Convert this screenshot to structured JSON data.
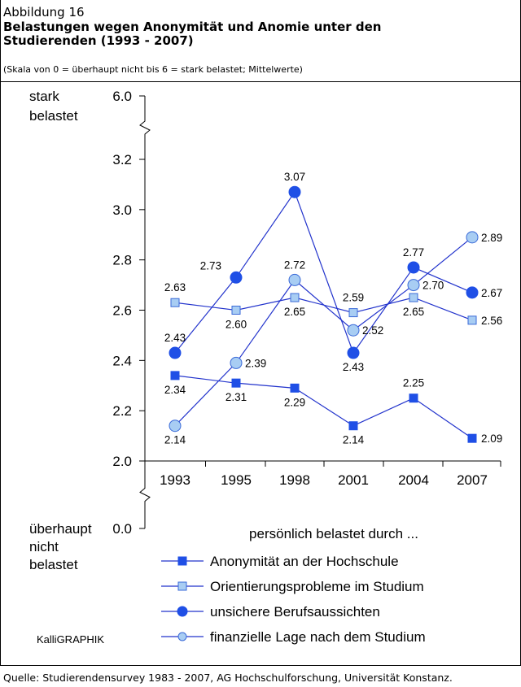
{
  "chart_data": {
    "type": "line",
    "figure_label": "Abbildung 16",
    "title_lines": [
      "Belastungen wegen Anonymität und Anomie unter den",
      "Studierenden (1993 - 2007)"
    ],
    "subtitle": "(Skala von 0 = überhaupt nicht bis 6 = stark belastet; Mittelwerte)",
    "y_top_label": [
      "stark",
      "belastet"
    ],
    "y_bottom_label": [
      "überhaupt",
      "nicht",
      "belastet"
    ],
    "categories": [
      "1993",
      "1995",
      "1998",
      "2001",
      "2004",
      "2007"
    ],
    "ylim": [
      0,
      6
    ],
    "y_breaks": [
      [
        0,
        2
      ],
      [
        3.2,
        6
      ]
    ],
    "yticks": [
      {
        "value": 0,
        "label": "0.0"
      },
      {
        "value": 2,
        "label": "2.0"
      },
      2.2,
      2.4,
      2.6,
      2.8,
      {
        "value": 3,
        "label": "3.0"
      },
      3.2,
      {
        "value": 6,
        "label": "6.0"
      }
    ],
    "grid": false,
    "legend_title": "persönlich belastet durch ...",
    "series": [
      {
        "name": "Anonymität an der Hochschule",
        "color": "#1f4fe6",
        "line_color": "#2233cc",
        "marker": "square",
        "values": [
          2.34,
          2.31,
          2.29,
          2.14,
          2.25,
          2.09
        ],
        "value_labels": [
          "2.34",
          "2.31",
          "2.29",
          "2.14",
          "2.25",
          "2.09"
        ]
      },
      {
        "name": "Orientierungsprobleme im Studium",
        "color": "#a8cdf3",
        "line_color": "#2233cc",
        "marker": "square",
        "values": [
          2.63,
          2.6,
          2.65,
          2.59,
          2.65,
          2.56
        ],
        "value_labels": [
          "2.63",
          "2.60",
          "2.65",
          "2.59",
          "2.65",
          "2.56"
        ]
      },
      {
        "name": "unsichere Berufsaussichten",
        "color": "#1f4fe6",
        "line_color": "#2233cc",
        "marker": "circle",
        "values": [
          2.43,
          2.73,
          3.07,
          2.43,
          2.77,
          2.67
        ],
        "value_labels": [
          "2.43",
          "2.73",
          "3.07",
          "2.43",
          "2.77",
          "2.67"
        ]
      },
      {
        "name": "finanzielle Lage nach dem Studium",
        "color": "#a8cdf3",
        "line_color": "#2233cc",
        "marker": "circle",
        "values": [
          2.14,
          2.39,
          2.72,
          2.52,
          2.7,
          2.89
        ],
        "value_labels": [
          "2.14",
          "2.39",
          "2.72",
          "2.52",
          "2.70",
          "2.89"
        ]
      }
    ],
    "credit": "KalliGRAPHIK",
    "source": "Quelle: Studierendensurvey 1983 - 2007, AG Hochschulforschung, Universität Konstanz."
  }
}
